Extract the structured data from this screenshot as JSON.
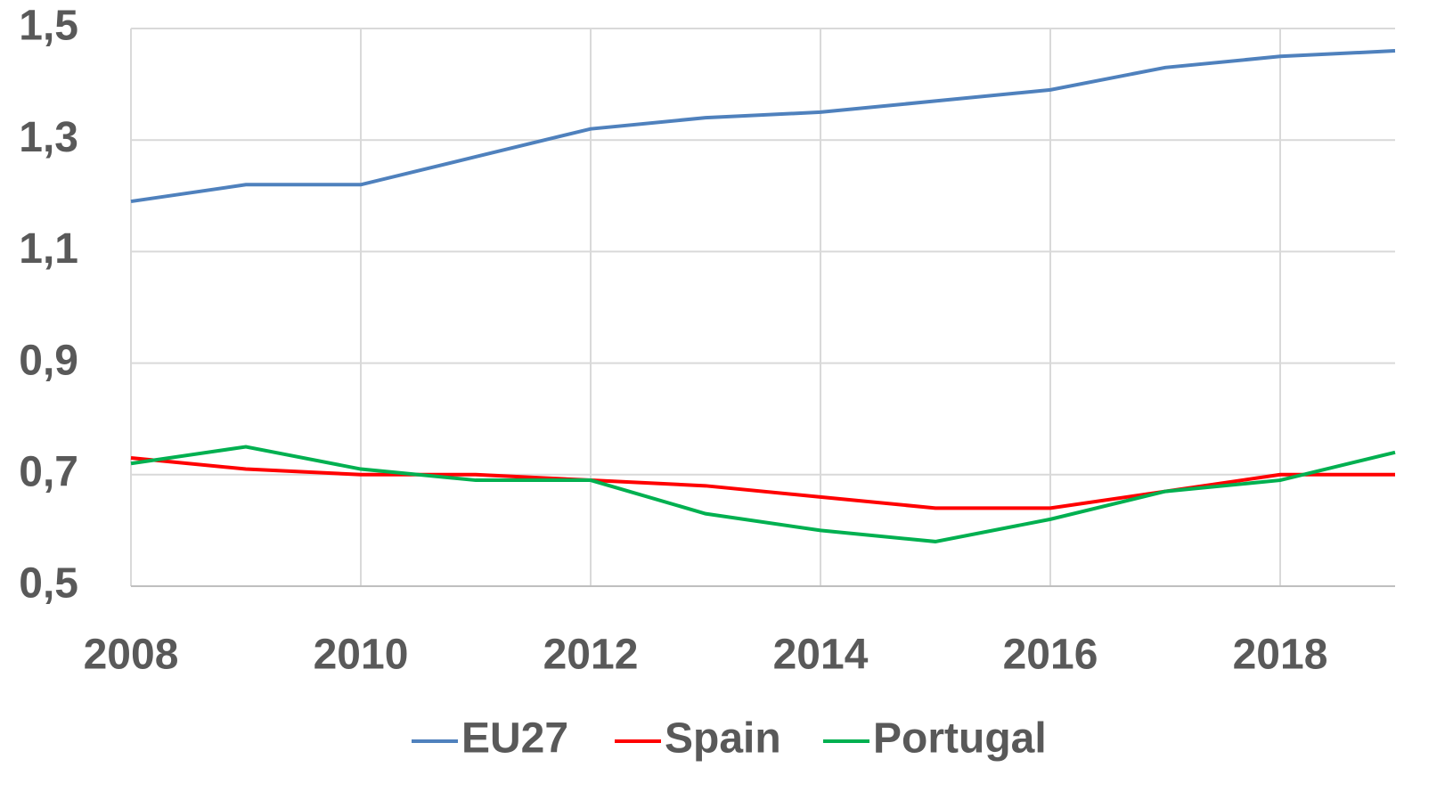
{
  "chart_data": {
    "type": "line",
    "x": [
      2008,
      2009,
      2010,
      2011,
      2012,
      2013,
      2014,
      2015,
      2016,
      2017,
      2018,
      2019
    ],
    "series": [
      {
        "name": "EU27",
        "color": "#4f81bd",
        "values": [
          1.19,
          1.22,
          1.22,
          1.27,
          1.32,
          1.34,
          1.35,
          1.37,
          1.39,
          1.43,
          1.45,
          1.46
        ]
      },
      {
        "name": "Spain",
        "color": "#ff0000",
        "values": [
          0.73,
          0.71,
          0.7,
          0.7,
          0.69,
          0.68,
          0.66,
          0.64,
          0.64,
          0.67,
          0.7,
          0.7
        ]
      },
      {
        "name": "Portugal",
        "color": "#00b050",
        "values": [
          0.72,
          0.75,
          0.71,
          0.69,
          0.69,
          0.63,
          0.6,
          0.58,
          0.62,
          0.67,
          0.69,
          0.74
        ]
      }
    ],
    "xlim": [
      2008,
      2019
    ],
    "xticks": [
      2008,
      2010,
      2012,
      2014,
      2016,
      2018
    ],
    "ylim": [
      0.5,
      1.5
    ],
    "yticks": [
      {
        "value": 0.5,
        "label": "0,5"
      },
      {
        "value": 0.7,
        "label": "0,7"
      },
      {
        "value": 0.9,
        "label": "0,9"
      },
      {
        "value": 1.1,
        "label": "1,1"
      },
      {
        "value": 1.3,
        "label": "1,3"
      },
      {
        "value": 1.5,
        "label": "1,5"
      }
    ],
    "grid": true,
    "legend": "bottom"
  }
}
